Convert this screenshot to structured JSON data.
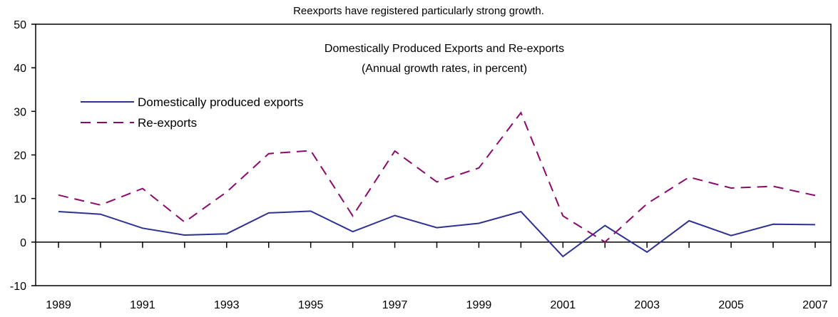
{
  "chart_data": {
    "type": "line",
    "caption": "Reexports have registered particularly strong growth.",
    "title": "Domestically Produced Exports and Re-exports",
    "subtitle": "(Annual growth rates, in percent)",
    "xlabel": "",
    "ylabel": "",
    "ylim": [
      -10,
      50
    ],
    "yticks": [
      -10,
      0,
      10,
      20,
      30,
      40,
      50
    ],
    "x": [
      1989,
      1990,
      1991,
      1992,
      1993,
      1994,
      1995,
      1996,
      1997,
      1998,
      1999,
      2000,
      2001,
      2002,
      2003,
      2004,
      2005,
      2006,
      2007
    ],
    "xtick_labels": [
      "1989",
      "1991",
      "1993",
      "1995",
      "1997",
      "1999",
      "2001",
      "2003",
      "2005",
      "2007"
    ],
    "grid": false,
    "legend_position": "top-left",
    "series": [
      {
        "name": "Domestically produced exports",
        "color": "#2e3192",
        "style": "solid",
        "values": [
          7.0,
          6.4,
          3.2,
          1.6,
          1.9,
          6.7,
          7.1,
          2.4,
          6.1,
          3.3,
          4.3,
          7.0,
          -3.3,
          3.8,
          -2.3,
          4.9,
          1.5,
          4.1,
          4.0
        ]
      },
      {
        "name": "Re-exports",
        "color": "#8b0a6e",
        "style": "dashed",
        "values": [
          10.8,
          8.5,
          12.3,
          4.6,
          11.5,
          20.3,
          21.0,
          6.0,
          20.9,
          13.8,
          17.0,
          29.7,
          6.0,
          0.0,
          8.8,
          14.9,
          12.4,
          12.8,
          10.7
        ]
      }
    ]
  }
}
